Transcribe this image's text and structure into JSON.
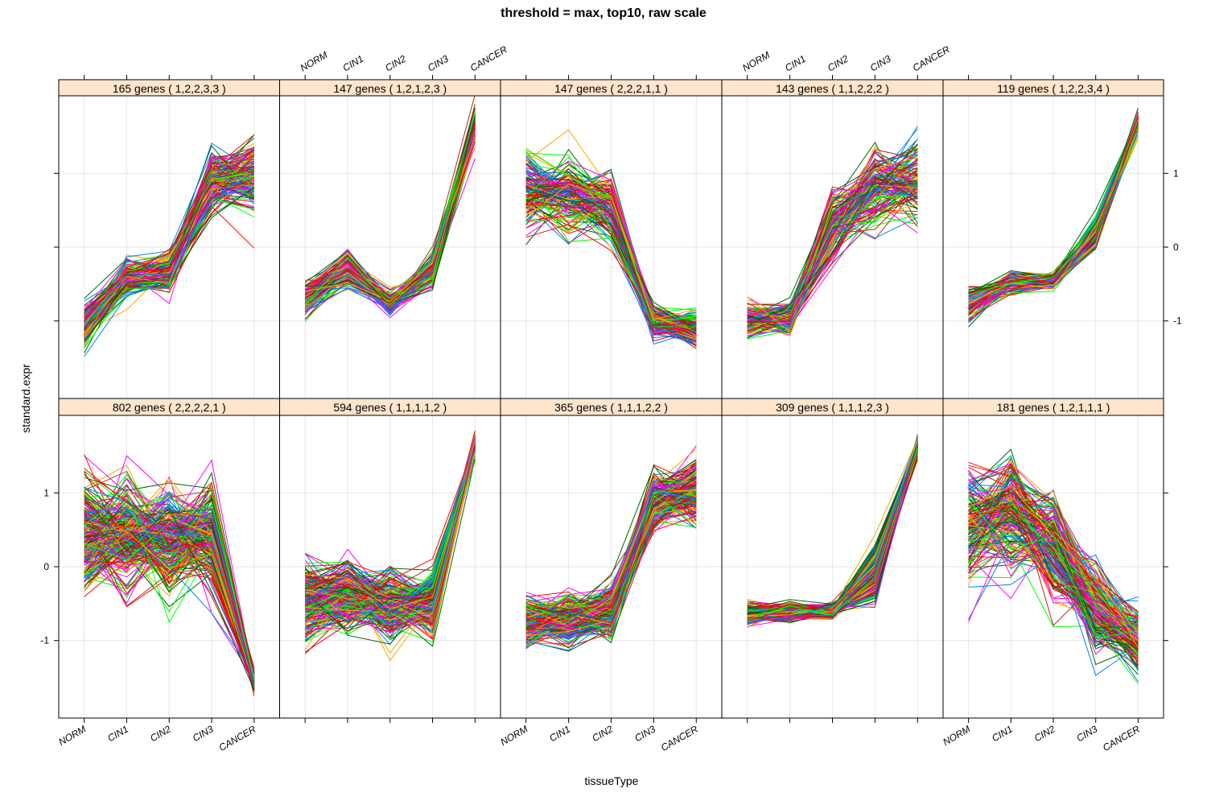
{
  "chart_data": {
    "type": "line",
    "title": "threshold = max, top10, raw scale",
    "xlabel": "tissueType",
    "ylabel": "standard.expr",
    "categories": [
      "NORM",
      "CIN1",
      "CIN2",
      "CIN3",
      "CANCER"
    ],
    "y_ticks": [
      -1,
      0,
      1
    ],
    "ylim": [
      -2.05,
      2.05
    ],
    "grid": true,
    "layout": "5 columns x 2 rows (lattice parallel coordinate panels)",
    "strip_color": "#ffe5cc",
    "line_colors": [
      "#0080ff",
      "#ff00ff",
      "#006400",
      "#ff0000",
      "#ffa500",
      "#00ff00",
      "#a52a2a"
    ],
    "panels": [
      {
        "label": "165 genes ( 1,2,2,3,3 )",
        "n_genes": 165,
        "pattern": [
          1,
          2,
          2,
          3,
          3
        ],
        "row": "top",
        "col": 1,
        "approx_median": [
          -1.1,
          -0.4,
          -0.35,
          0.9,
          1.0
        ],
        "approx_spread": [
          0.2,
          0.15,
          0.18,
          0.25,
          0.3
        ]
      },
      {
        "label": "147 genes ( 1,2,1,2,3 )",
        "n_genes": 147,
        "pattern": [
          1,
          2,
          1,
          2,
          3
        ],
        "row": "top",
        "col": 2,
        "approx_median": [
          -0.7,
          -0.3,
          -0.75,
          -0.3,
          1.65
        ],
        "approx_spread": [
          0.15,
          0.15,
          0.1,
          0.15,
          0.15
        ]
      },
      {
        "label": "147 genes ( 2,2,2,1,1 )",
        "n_genes": 147,
        "pattern": [
          2,
          2,
          2,
          1,
          1
        ],
        "row": "top",
        "col": 3,
        "approx_median": [
          0.8,
          0.75,
          0.55,
          -1.0,
          -1.1
        ],
        "approx_spread": [
          0.35,
          0.3,
          0.3,
          0.15,
          0.15
        ]
      },
      {
        "label": "143 genes ( 1,1,2,2,2 )",
        "n_genes": 143,
        "pattern": [
          1,
          1,
          2,
          2,
          2
        ],
        "row": "top",
        "col": 4,
        "approx_median": [
          -1.0,
          -0.95,
          0.3,
          0.8,
          0.9
        ],
        "approx_spread": [
          0.15,
          0.15,
          0.3,
          0.3,
          0.35
        ]
      },
      {
        "label": "119 genes ( 1,2,2,3,4 )",
        "n_genes": 119,
        "pattern": [
          1,
          2,
          2,
          3,
          4
        ],
        "row": "top",
        "col": 5,
        "approx_median": [
          -0.75,
          -0.5,
          -0.45,
          0.2,
          1.7
        ],
        "approx_spread": [
          0.15,
          0.08,
          0.07,
          0.15,
          0.1
        ]
      },
      {
        "label": "802 genes ( 2,2,2,2,1 )",
        "n_genes": 802,
        "pattern": [
          2,
          2,
          2,
          2,
          1
        ],
        "row": "bottom",
        "col": 1,
        "approx_median": [
          0.4,
          0.45,
          0.4,
          0.4,
          -1.55
        ],
        "approx_spread": [
          0.45,
          0.45,
          0.45,
          0.45,
          0.08
        ]
      },
      {
        "label": "594 genes ( 1,1,1,1,2 )",
        "n_genes": 594,
        "pattern": [
          1,
          1,
          1,
          1,
          2
        ],
        "row": "bottom",
        "col": 2,
        "approx_median": [
          -0.45,
          -0.4,
          -0.5,
          -0.45,
          1.65
        ],
        "approx_spread": [
          0.3,
          0.3,
          0.3,
          0.25,
          0.08
        ]
      },
      {
        "label": "365 genes ( 1,1,1,2,2 )",
        "n_genes": 365,
        "pattern": [
          1,
          1,
          1,
          2,
          2
        ],
        "row": "bottom",
        "col": 3,
        "approx_median": [
          -0.75,
          -0.7,
          -0.6,
          0.9,
          1.05
        ],
        "approx_spread": [
          0.2,
          0.2,
          0.2,
          0.25,
          0.25
        ]
      },
      {
        "label": "309 genes ( 1,1,1,2,3 )",
        "n_genes": 309,
        "pattern": [
          1,
          1,
          1,
          2,
          3
        ],
        "row": "bottom",
        "col": 4,
        "approx_median": [
          -0.65,
          -0.6,
          -0.6,
          -0.1,
          1.65
        ],
        "approx_spread": [
          0.08,
          0.07,
          0.06,
          0.2,
          0.08
        ]
      },
      {
        "label": "181 genes ( 1,2,1,1,1 )",
        "n_genes": 181,
        "pattern": [
          1,
          2,
          1,
          1,
          1
        ],
        "row": "bottom",
        "col": 5,
        "approx_median": [
          0.5,
          0.7,
          0.3,
          -0.55,
          -1.0
        ],
        "approx_spread": [
          0.5,
          0.55,
          0.45,
          0.4,
          0.3
        ]
      }
    ]
  }
}
